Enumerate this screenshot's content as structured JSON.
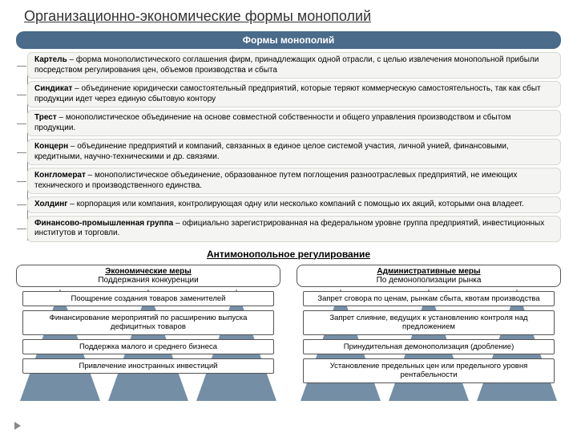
{
  "title": "Организационно-экономические формы монополий",
  "header": "Формы монополий",
  "forms": [
    {
      "term": "Картель",
      "desc": " – форма монополистического соглашения фирм, принадлежащих одной отрасли, с целью извлечения монопольной прибыли посредством регулирования цен, объемов производства и сбыта"
    },
    {
      "term": "Синдикат",
      "desc": " – объединение юридически самостоятельный предприятий, которые теряют коммерческую самостоятельность, так как сбыт продукции идет через единую сбытовую контору"
    },
    {
      "term": "Трест",
      "desc": " – монополистическое объединение на основе совместной собственности и общего управления производством и сбытом продукции."
    },
    {
      "term": "Концерн",
      "desc": " – объединение предприятий и компаний, связанных в единое целое системой участия, личной унией, финансовыми, кредитными, научно-техническими и др. связями."
    },
    {
      "term": "Конгломерат",
      "desc": " – монополистическое объединение, образованное путем поглощения разноотраслевых предприятий, не имеющих технического и производственного единства."
    },
    {
      "term": "Холдинг",
      "desc": " – корпорация или компания, контролирующая одну или несколько компаний с помощью их акций, которыми она владеет."
    },
    {
      "term": "Финансово-промышленная группа",
      "desc": " – официально зарегистрированная на федеральном уровне группа предприятий, инвестиционных институтов и торговли."
    }
  ],
  "subheader": "Антимонопольное регулирование",
  "columns": {
    "left": {
      "title": "Экономические меры",
      "subtitle": "Поддержания конкуренции",
      "items": [
        "Поощрение создания товаров заменителей",
        "Финансирование мероприятий по расширению выпуска дефицитных товаров",
        "Поддержка малого и среднего бизнеса",
        "Привлечение иностранных инвестиций"
      ]
    },
    "right": {
      "title": "Административные меры",
      "subtitle": "По демонополизации рынка",
      "items": [
        "Запрет сговора по ценам, рынкам сбыта, квотам производства",
        "Запрет слияние, ведущих к установлению контроля над предложением",
        "Принудительная демонополизация (дробление)",
        "Установление предельных цен или предельного уровня рентабельности"
      ]
    }
  },
  "colors": {
    "header_bg": "#4a6b8a",
    "row_bg": "#f4f4f2",
    "triangle": "#5a7a95",
    "border": "#555555"
  }
}
